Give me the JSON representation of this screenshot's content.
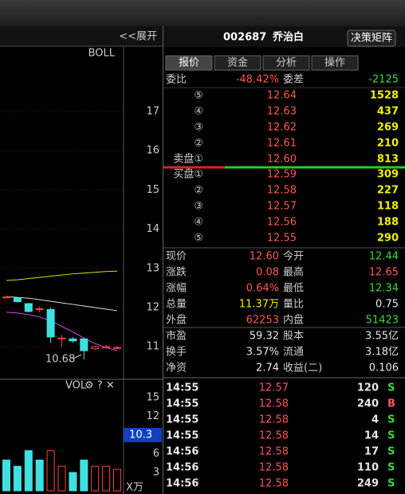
{
  "header": {
    "expand": "<<展开",
    "code": "002687",
    "name": "乔治白",
    "button": "决策矩阵"
  },
  "tabs": [
    "报价",
    "资金",
    "分析",
    "操作"
  ],
  "chart": {
    "indicator": "BOLL",
    "price_ticks": [
      17,
      16,
      15,
      14,
      13,
      12,
      11
    ],
    "candles": [
      {
        "open": 12.25,
        "close": 12.27,
        "high": 12.3,
        "low": 12.24
      },
      {
        "open": 12.25,
        "close": 12.15,
        "high": 12.27,
        "low": 12.13
      },
      {
        "open": 12.1,
        "close": 11.9,
        "high": 12.12,
        "low": 11.88
      },
      {
        "open": 11.95,
        "close": 11.97,
        "high": 12.02,
        "low": 11.88
      },
      {
        "open": 11.95,
        "close": 11.25,
        "high": 12.0,
        "low": 11.1
      },
      {
        "open": 11.2,
        "close": 11.22,
        "high": 11.3,
        "low": 11.0
      },
      {
        "open": 11.2,
        "close": 11.15,
        "high": 11.25,
        "low": 11.1
      },
      {
        "open": 11.2,
        "close": 10.9,
        "high": 11.22,
        "low": 10.68
      },
      {
        "open": 10.95,
        "close": 11.0,
        "high": 11.03,
        "low": 10.92
      },
      {
        "open": 10.98,
        "close": 11.0,
        "high": 11.05,
        "low": 10.95
      },
      {
        "open": 10.96,
        "close": 10.98,
        "high": 11.02,
        "low": 10.93
      }
    ],
    "boll": {
      "upper": [
        12.69,
        12.71,
        12.74,
        12.77,
        12.8,
        12.83,
        12.86,
        12.88,
        12.9,
        12.92,
        12.93
      ],
      "mid": [
        12.28,
        12.26,
        12.24,
        12.2,
        12.16,
        12.12,
        12.08,
        12.04,
        12.0,
        11.96,
        11.92
      ],
      "lower": [
        11.88,
        11.86,
        11.82,
        11.76,
        11.66,
        11.52,
        11.38,
        11.22,
        11.08,
        10.98,
        10.9
      ]
    },
    "low_label": "10.68"
  },
  "volume": {
    "title": "VOL",
    "ticks": [
      15,
      12,
      6,
      3
    ],
    "current": 10.3,
    "unit": "X万",
    "bars": [
      {
        "value": 5,
        "rising": false
      },
      {
        "value": 4,
        "rising": false
      },
      {
        "value": 6.5,
        "rising": false
      },
      {
        "value": 5,
        "rising": false
      },
      {
        "value": 6.5,
        "rising": true
      },
      {
        "value": 4,
        "rising": true
      },
      {
        "value": 3,
        "rising": false
      },
      {
        "value": 5,
        "rising": false
      },
      {
        "value": 4,
        "rising": true
      },
      {
        "value": 4,
        "rising": true
      },
      {
        "value": 3.5,
        "rising": true
      }
    ]
  },
  "quote": {
    "ratio_label": "委比",
    "ratio": "-48.42%",
    "diff_label": "委差",
    "diff": "-2125",
    "sell": [
      {
        "label": "⑤",
        "price": "12.64",
        "volume": "1528"
      },
      {
        "label": "④",
        "price": "12.63",
        "volume": "437"
      },
      {
        "label": "③",
        "price": "12.62",
        "volume": "269"
      },
      {
        "label": "②",
        "price": "12.61",
        "volume": "210"
      },
      {
        "label": "卖盘①",
        "price": "12.60",
        "volume": "813"
      }
    ],
    "buy": [
      {
        "label": "买盘①",
        "price": "12.59",
        "volume": "309"
      },
      {
        "label": "②",
        "price": "12.58",
        "volume": "227"
      },
      {
        "label": "③",
        "price": "12.57",
        "volume": "118"
      },
      {
        "label": "④",
        "price": "12.56",
        "volume": "188"
      },
      {
        "label": "⑤",
        "price": "12.55",
        "volume": "290"
      }
    ]
  },
  "stats": [
    {
      "l1": "现价",
      "v1": "12.60",
      "c1": "red",
      "l2": "今开",
      "v2": "12.44",
      "c2": "green"
    },
    {
      "l1": "涨跌",
      "v1": "0.08",
      "c1": "red",
      "l2": "最高",
      "v2": "12.65",
      "c2": "red"
    },
    {
      "l1": "涨幅",
      "v1": "0.64%",
      "c1": "red",
      "l2": "最低",
      "v2": "12.34",
      "c2": "green"
    },
    {
      "l1": "总量",
      "v1": "11.37万",
      "c1": "yellow",
      "l2": "量比",
      "v2": "0.75",
      "c2": "white"
    },
    {
      "l1": "外盘",
      "v1": "62253",
      "c1": "red",
      "l2": "内盘",
      "v2": "51423",
      "c2": "green"
    },
    {
      "l1": "市盈",
      "v1": "59.32",
      "c1": "white",
      "l2": "股本",
      "v2": "3.55亿",
      "c2": "white"
    },
    {
      "l1": "换手",
      "v1": "3.57%",
      "c1": "white",
      "l2": "流通",
      "v2": "3.18亿",
      "c2": "white"
    },
    {
      "l1": "净资",
      "v1": "2.74",
      "c1": "white",
      "l2": "收益(二)",
      "v2": "0.106",
      "c2": "white"
    }
  ],
  "trades": [
    {
      "time": "14:55",
      "price": "12.57",
      "volume": "120",
      "side": "S"
    },
    {
      "time": "14:55",
      "price": "12.58",
      "volume": "240",
      "side": "B"
    },
    {
      "time": "14:55",
      "price": "12.58",
      "volume": "4",
      "side": "S"
    },
    {
      "time": "14:55",
      "price": "12.58",
      "volume": "14",
      "side": "S"
    },
    {
      "time": "14:56",
      "price": "12.58",
      "volume": "17",
      "side": "S"
    },
    {
      "time": "14:56",
      "price": "12.58",
      "volume": "110",
      "side": "S"
    },
    {
      "time": "14:56",
      "price": "12.58",
      "volume": "249",
      "side": "S"
    }
  ]
}
